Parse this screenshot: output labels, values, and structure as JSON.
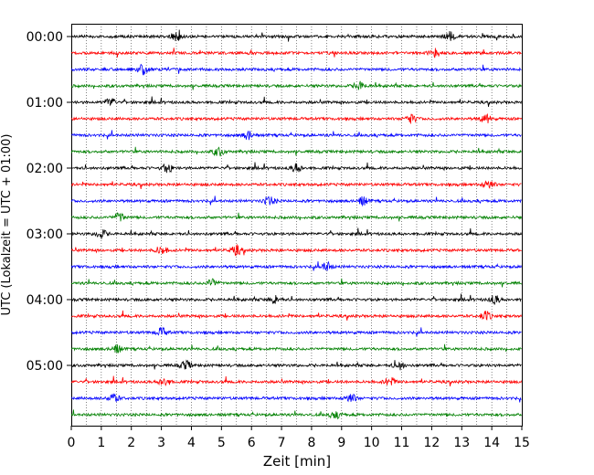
{
  "chart_data": {
    "type": "line",
    "title": "",
    "xlabel": "Zeit  [min]",
    "ylabel": "UTC (Lokalzeit = UTC + 01:00)",
    "xlim": [
      0,
      15
    ],
    "x_ticks": [
      "0",
      "1",
      "2",
      "3",
      "4",
      "5",
      "6",
      "7",
      "8",
      "9",
      "10",
      "11",
      "12",
      "13",
      "14",
      "15"
    ],
    "y_ticks": [
      "00:00",
      "01:00",
      "02:00",
      "03:00",
      "04:00",
      "05:00"
    ],
    "y_tick_rows": [
      0,
      4,
      8,
      12,
      16,
      20
    ],
    "grid": "vertical dotted",
    "row_colors": [
      "#000000",
      "#ff0000",
      "#0000ff",
      "#008000"
    ],
    "rows": [
      {
        "start": "00:00",
        "bursts": [
          3.5,
          12.6
        ]
      },
      {
        "start": "00:15",
        "bursts": [
          12.1
        ]
      },
      {
        "start": "00:30",
        "bursts": [
          2.4
        ]
      },
      {
        "start": "00:45",
        "bursts": [
          9.6
        ]
      },
      {
        "start": "01:00",
        "bursts": [
          1.3
        ]
      },
      {
        "start": "01:15",
        "bursts": [
          11.3,
          13.8
        ]
      },
      {
        "start": "01:30",
        "bursts": [
          5.9
        ]
      },
      {
        "start": "01:45",
        "bursts": [
          4.9
        ]
      },
      {
        "start": "02:00",
        "bursts": [
          3.2,
          7.5
        ]
      },
      {
        "start": "02:15",
        "bursts": [
          13.9
        ]
      },
      {
        "start": "02:30",
        "bursts": [
          6.6,
          9.7
        ]
      },
      {
        "start": "02:45",
        "bursts": [
          1.6
        ]
      },
      {
        "start": "03:00",
        "bursts": [
          1.0
        ]
      },
      {
        "start": "03:15",
        "bursts": [
          3.0,
          5.5
        ]
      },
      {
        "start": "03:30",
        "bursts": [
          8.5
        ]
      },
      {
        "start": "03:45",
        "bursts": [
          4.7
        ]
      },
      {
        "start": "04:00",
        "bursts": [
          6.8,
          14.1
        ]
      },
      {
        "start": "04:15",
        "bursts": [
          13.8
        ]
      },
      {
        "start": "04:30",
        "bursts": [
          3.0
        ]
      },
      {
        "start": "04:45",
        "bursts": [
          1.5
        ]
      },
      {
        "start": "05:00",
        "bursts": [
          3.8,
          10.9
        ]
      },
      {
        "start": "05:15",
        "bursts": [
          3.1,
          10.6
        ]
      },
      {
        "start": "05:30",
        "bursts": [
          1.4,
          9.3
        ]
      },
      {
        "start": "05:45",
        "bursts": [
          8.8
        ]
      }
    ]
  }
}
